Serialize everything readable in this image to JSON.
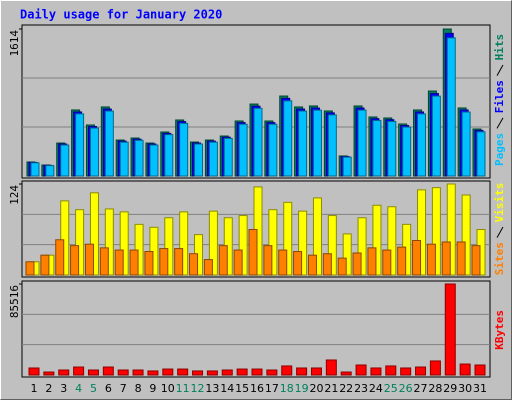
{
  "chart_data": [
    {
      "type": "bar",
      "title": "Daily usage for January 2020",
      "categories": [
        "1",
        "2",
        "3",
        "4",
        "5",
        "6",
        "7",
        "8",
        "9",
        "10",
        "11",
        "12",
        "13",
        "14",
        "15",
        "16",
        "17",
        "18",
        "19",
        "20",
        "21",
        "22",
        "23",
        "24",
        "25",
        "26",
        "27",
        "28",
        "29",
        "30",
        "31"
      ],
      "category_colors": [
        "#000000",
        "#000000",
        "#000000",
        "#00805c",
        "#00805c",
        "#000000",
        "#000000",
        "#000000",
        "#000000",
        "#000000",
        "#00805c",
        "#00805c",
        "#000000",
        "#000000",
        "#000000",
        "#000000",
        "#000000",
        "#00805c",
        "#00805c",
        "#000000",
        "#000000",
        "#000000",
        "#000000",
        "#000000",
        "#00805c",
        "#00805c",
        "#000000",
        "#000000",
        "#000000",
        "#000000",
        "#000000"
      ],
      "ylim": [
        0,
        1614
      ],
      "yticks": [
        1614
      ],
      "series": [
        {
          "name": "Hits",
          "color": "#00805c",
          "values": [
            154,
            121,
            362,
            725,
            560,
            758,
            395,
            417,
            362,
            483,
            615,
            373,
            395,
            439,
            604,
            790,
            604,
            878,
            758,
            769,
            714,
            220,
            769,
            648,
            637,
            571,
            725,
            933,
            1614,
            747,
            516
          ]
        },
        {
          "name": "Files",
          "color": "#0000ff",
          "values": [
            149,
            117,
            351,
            703,
            543,
            735,
            383,
            404,
            351,
            468,
            597,
            362,
            383,
            426,
            586,
            766,
            586,
            852,
            735,
            746,
            693,
            213,
            746,
            629,
            618,
            554,
            703,
            905,
            1566,
            725,
            501
          ]
        },
        {
          "name": "Pages",
          "color": "#00c0ff",
          "values": [
            145,
            114,
            340,
            682,
            526,
            713,
            371,
            392,
            340,
            454,
            578,
            351,
            371,
            413,
            568,
            743,
            568,
            825,
            713,
            723,
            671,
            207,
            723,
            609,
            599,
            537,
            682,
            877,
            1517,
            702,
            485
          ]
        }
      ]
    },
    {
      "type": "bar",
      "ylim": [
        0,
        124
      ],
      "yticks": [
        124
      ],
      "series": [
        {
          "name": "Visits",
          "color": "#ffff00",
          "values": [
            18,
            27,
            101,
            89,
            112,
            90,
            86,
            69,
            65,
            78,
            86,
            55,
            87,
            78,
            81,
            120,
            89,
            99,
            87,
            105,
            81,
            56,
            78,
            95,
            93,
            69,
            116,
            119,
            124,
            109,
            62
          ]
        },
        {
          "name": "Sites",
          "color": "#ff8000",
          "values": [
            18,
            27,
            48,
            40,
            42,
            37,
            34,
            34,
            32,
            36,
            36,
            29,
            21,
            40,
            34,
            62,
            40,
            34,
            32,
            27,
            29,
            23,
            30,
            37,
            34,
            38,
            47,
            42,
            45,
            45,
            40
          ]
        }
      ]
    },
    {
      "type": "bar",
      "ylim": [
        0,
        85516
      ],
      "yticks": [
        85516
      ],
      "series": [
        {
          "name": "KBytes",
          "color": "#ff0000",
          "values": [
            6600,
            2800,
            4700,
            7500,
            4700,
            7500,
            4700,
            4700,
            3800,
            5600,
            5600,
            3800,
            3800,
            4700,
            5600,
            5600,
            4700,
            8500,
            6600,
            6600,
            14100,
            2800,
            9400,
            6600,
            8500,
            6600,
            7500,
            13200,
            85516,
            10300,
            9400
          ]
        }
      ]
    }
  ]
}
